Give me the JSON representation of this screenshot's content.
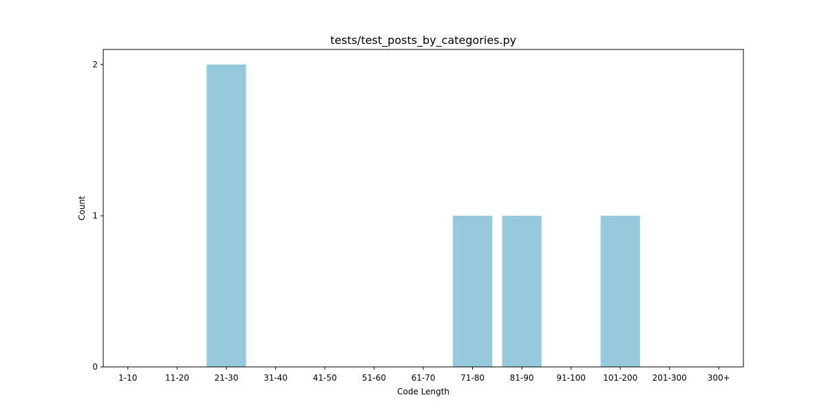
{
  "chart_data": {
    "type": "bar",
    "title": "tests/test_posts_by_categories.py",
    "xlabel": "Code Length",
    "ylabel": "Count",
    "categories": [
      "1-10",
      "11-20",
      "21-30",
      "31-40",
      "41-50",
      "51-60",
      "61-70",
      "71-80",
      "81-90",
      "91-100",
      "101-200",
      "201-300",
      "300+"
    ],
    "values": [
      0,
      0,
      2,
      0,
      0,
      0,
      0,
      1,
      1,
      0,
      1,
      0,
      0
    ],
    "ylim": [
      0,
      2.1
    ],
    "yticks": [
      0,
      1,
      2
    ],
    "grid": false,
    "bar_color": "#96c9dc",
    "axis_color": "#000000"
  }
}
